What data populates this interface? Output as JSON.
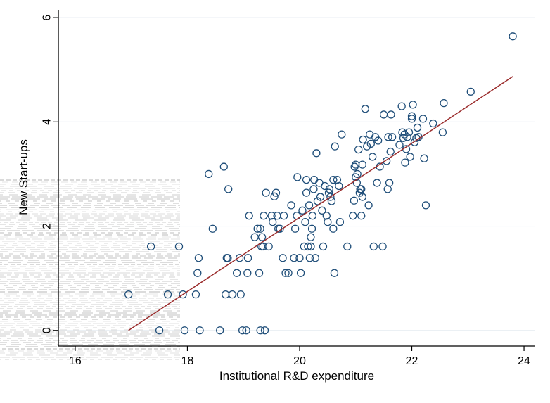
{
  "chart_data": {
    "type": "scatter",
    "title": "",
    "xlabel": "Institutional R&D expenditure",
    "ylabel": "New Start-ups",
    "xlim": [
      15.7,
      24.2
    ],
    "ylim": [
      -0.3,
      6.15
    ],
    "x_ticks": [
      16,
      18,
      20,
      22,
      24
    ],
    "y_ticks": [
      0,
      2,
      4,
      6
    ],
    "grid": "horizontal",
    "legend": "none",
    "colors": {
      "points": "#1f4e79",
      "fit_line": "#9b2c2c",
      "grid": "#e8eef3",
      "axis": "#000000"
    },
    "fit_line": {
      "x": [
        16.95,
        23.8
      ],
      "y": [
        0.0,
        4.87
      ]
    },
    "series": [
      {
        "points": [
          [
            16.95,
            0.69
          ],
          [
            17.35,
            1.61
          ],
          [
            17.5,
            0.0
          ],
          [
            17.65,
            0.69
          ],
          [
            17.85,
            1.61
          ],
          [
            17.92,
            0.69
          ],
          [
            17.95,
            0.0
          ],
          [
            18.15,
            0.69
          ],
          [
            18.18,
            1.1
          ],
          [
            18.2,
            1.39
          ],
          [
            18.22,
            0.0
          ],
          [
            18.38,
            3.0
          ],
          [
            18.45,
            1.95
          ],
          [
            18.58,
            0.0
          ],
          [
            18.65,
            3.14
          ],
          [
            18.68,
            0.69
          ],
          [
            18.7,
            1.39
          ],
          [
            18.72,
            1.39
          ],
          [
            18.73,
            2.71
          ],
          [
            18.8,
            0.69
          ],
          [
            18.88,
            1.1
          ],
          [
            18.93,
            1.39
          ],
          [
            18.95,
            0.69
          ],
          [
            18.98,
            0.0
          ],
          [
            19.05,
            0.0
          ],
          [
            19.07,
            1.1
          ],
          [
            19.08,
            1.39
          ],
          [
            19.1,
            2.2
          ],
          [
            19.2,
            1.79
          ],
          [
            19.25,
            1.95
          ],
          [
            19.28,
            1.1
          ],
          [
            19.3,
            1.95
          ],
          [
            19.3,
            0.0
          ],
          [
            19.32,
            1.61
          ],
          [
            19.33,
            1.79
          ],
          [
            19.35,
            1.61
          ],
          [
            19.36,
            2.2
          ],
          [
            19.38,
            0.0
          ],
          [
            19.4,
            2.64
          ],
          [
            19.45,
            1.61
          ],
          [
            19.5,
            2.2
          ],
          [
            19.52,
            2.08
          ],
          [
            19.55,
            2.57
          ],
          [
            19.58,
            2.64
          ],
          [
            19.6,
            2.2
          ],
          [
            19.62,
            1.95
          ],
          [
            19.65,
            1.95
          ],
          [
            19.7,
            1.39
          ],
          [
            19.72,
            2.2
          ],
          [
            19.75,
            1.1
          ],
          [
            19.8,
            1.1
          ],
          [
            19.85,
            2.4
          ],
          [
            19.9,
            1.39
          ],
          [
            19.92,
            1.95
          ],
          [
            19.95,
            2.2
          ],
          [
            19.96,
            2.94
          ],
          [
            20.0,
            1.39
          ],
          [
            20.02,
            1.1
          ],
          [
            20.05,
            2.3
          ],
          [
            20.08,
            1.61
          ],
          [
            20.1,
            2.08
          ],
          [
            20.12,
            2.64
          ],
          [
            20.12,
            2.89
          ],
          [
            20.15,
            1.61
          ],
          [
            20.17,
            2.4
          ],
          [
            20.18,
            1.39
          ],
          [
            20.2,
            1.79
          ],
          [
            20.2,
            1.61
          ],
          [
            20.22,
            1.95
          ],
          [
            20.23,
            2.2
          ],
          [
            20.25,
            2.71
          ],
          [
            20.26,
            2.89
          ],
          [
            20.28,
            1.39
          ],
          [
            20.3,
            3.4
          ],
          [
            20.32,
            2.48
          ],
          [
            20.35,
            2.83
          ],
          [
            20.37,
            2.56
          ],
          [
            20.4,
            2.3
          ],
          [
            20.42,
            1.61
          ],
          [
            20.45,
            2.77
          ],
          [
            20.48,
            2.2
          ],
          [
            20.5,
            2.08
          ],
          [
            20.52,
            2.64
          ],
          [
            20.53,
            2.71
          ],
          [
            20.55,
            2.56
          ],
          [
            20.57,
            2.48
          ],
          [
            20.6,
            2.89
          ],
          [
            20.6,
            1.95
          ],
          [
            20.62,
            1.1
          ],
          [
            20.63,
            3.53
          ],
          [
            20.67,
            2.89
          ],
          [
            20.7,
            2.77
          ],
          [
            20.72,
            2.08
          ],
          [
            20.75,
            3.76
          ],
          [
            20.85,
            1.61
          ],
          [
            20.95,
            2.2
          ],
          [
            20.97,
            2.49
          ],
          [
            20.98,
            3.14
          ],
          [
            21.0,
            2.94
          ],
          [
            21.0,
            3.18
          ],
          [
            21.02,
            2.83
          ],
          [
            21.03,
            3.0
          ],
          [
            21.05,
            3.47
          ],
          [
            21.07,
            2.64
          ],
          [
            21.08,
            2.71
          ],
          [
            21.1,
            2.2
          ],
          [
            21.1,
            2.71
          ],
          [
            21.12,
            3.18
          ],
          [
            21.12,
            2.56
          ],
          [
            21.13,
            3.66
          ],
          [
            21.17,
            4.25
          ],
          [
            21.2,
            3.53
          ],
          [
            21.23,
            2.4
          ],
          [
            21.25,
            3.76
          ],
          [
            21.27,
            3.58
          ],
          [
            21.3,
            3.33
          ],
          [
            21.32,
            1.61
          ],
          [
            21.35,
            3.71
          ],
          [
            21.38,
            2.83
          ],
          [
            21.4,
            3.64
          ],
          [
            21.43,
            3.14
          ],
          [
            21.48,
            1.61
          ],
          [
            21.5,
            4.14
          ],
          [
            21.55,
            3.25
          ],
          [
            21.57,
            2.71
          ],
          [
            21.58,
            3.71
          ],
          [
            21.6,
            2.83
          ],
          [
            21.62,
            3.43
          ],
          [
            21.63,
            4.14
          ],
          [
            21.65,
            3.71
          ],
          [
            21.78,
            3.56
          ],
          [
            21.82,
            4.3
          ],
          [
            21.83,
            3.8
          ],
          [
            21.85,
            3.69
          ],
          [
            21.87,
            3.76
          ],
          [
            21.88,
            3.22
          ],
          [
            21.9,
            3.48
          ],
          [
            21.92,
            3.71
          ],
          [
            21.95,
            3.8
          ],
          [
            21.97,
            3.33
          ],
          [
            22.0,
            4.06
          ],
          [
            22.0,
            4.11
          ],
          [
            22.02,
            4.33
          ],
          [
            22.05,
            3.61
          ],
          [
            22.08,
            3.69
          ],
          [
            22.1,
            3.89
          ],
          [
            22.12,
            3.71
          ],
          [
            22.2,
            4.06
          ],
          [
            22.22,
            3.3
          ],
          [
            22.25,
            2.4
          ],
          [
            22.38,
            3.97
          ],
          [
            22.55,
            3.8
          ],
          [
            22.57,
            4.36
          ],
          [
            23.05,
            4.58
          ],
          [
            23.8,
            5.64
          ]
        ]
      }
    ]
  }
}
